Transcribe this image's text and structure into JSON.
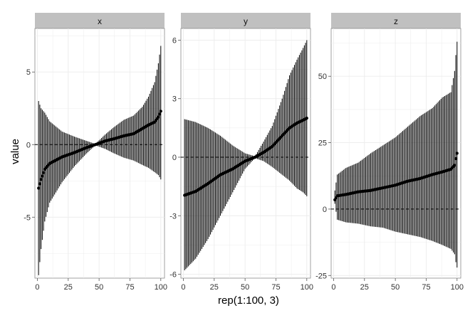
{
  "chart_data": {
    "type": "faceted-errorbar-scatter",
    "xlabel": "rep(1:100, 3)",
    "ylabel": "value",
    "xlim": [
      -2,
      103
    ],
    "x_ticks": [
      0,
      25,
      50,
      75,
      100
    ],
    "grid": true,
    "reference_line": {
      "y": 0,
      "style": "dashed"
    },
    "colors": {
      "strip": "#c0c0c0",
      "grid": "#ececec",
      "marks": "#000000"
    },
    "panels": [
      {
        "label": "x",
        "ylim": [
          -9.2,
          8.0
        ],
        "y_ticks": [
          -5,
          0,
          5
        ],
        "knots": [
          [
            1,
            -3.0,
            -9.0,
            3.0
          ],
          [
            3,
            -2.4,
            -7.2,
            2.5
          ],
          [
            6,
            -1.7,
            -5.3,
            2.2
          ],
          [
            10,
            -1.3,
            -4.0,
            1.6
          ],
          [
            20,
            -0.85,
            -2.6,
            0.9
          ],
          [
            30,
            -0.55,
            -1.5,
            0.55
          ],
          [
            40,
            -0.2,
            -0.6,
            0.25
          ],
          [
            47,
            0.0,
            -0.05,
            0.05
          ],
          [
            55,
            0.25,
            -0.3,
            0.7
          ],
          [
            62,
            0.4,
            -0.6,
            1.2
          ],
          [
            70,
            0.6,
            -0.9,
            1.7
          ],
          [
            78,
            0.75,
            -1.1,
            2.0
          ],
          [
            85,
            1.1,
            -1.4,
            2.6
          ],
          [
            90,
            1.35,
            -1.6,
            3.3
          ],
          [
            95,
            1.55,
            -1.9,
            4.3
          ],
          [
            98,
            1.9,
            -2.1,
            5.6
          ],
          [
            100,
            2.3,
            -2.4,
            6.8
          ]
        ]
      },
      {
        "label": "y",
        "ylim": [
          -6.2,
          6.6
        ],
        "y_ticks": [
          -6,
          -3,
          0,
          3,
          6
        ],
        "knots": [
          [
            1,
            -1.95,
            -5.8,
            1.95
          ],
          [
            10,
            -1.75,
            -5.2,
            1.8
          ],
          [
            20,
            -1.35,
            -4.2,
            1.5
          ],
          [
            30,
            -0.9,
            -3.0,
            1.1
          ],
          [
            40,
            -0.6,
            -1.8,
            0.6
          ],
          [
            50,
            -0.2,
            -0.6,
            0.2
          ],
          [
            58,
            0.0,
            -0.05,
            0.05
          ],
          [
            65,
            0.25,
            -0.2,
            0.8
          ],
          [
            72,
            0.55,
            -0.5,
            1.6
          ],
          [
            80,
            1.1,
            -0.9,
            3.0
          ],
          [
            86,
            1.5,
            -1.2,
            4.2
          ],
          [
            92,
            1.75,
            -1.6,
            5.0
          ],
          [
            97,
            1.9,
            -1.8,
            5.6
          ],
          [
            100,
            2.0,
            -2.0,
            6.0
          ]
        ]
      },
      {
        "label": "z",
        "ylim": [
          -26,
          68
        ],
        "y_ticks": [
          -25,
          0,
          25,
          50
        ],
        "knots": [
          [
            1,
            3.5,
            2.0,
            7.0
          ],
          [
            3,
            5.0,
            -4.0,
            13.0
          ],
          [
            10,
            5.5,
            -5.0,
            15.5
          ],
          [
            20,
            6.5,
            -5.5,
            17.5
          ],
          [
            30,
            7.0,
            -6.5,
            21.0
          ],
          [
            40,
            8.0,
            -7.0,
            24.0
          ],
          [
            50,
            9.0,
            -8.5,
            27.0
          ],
          [
            60,
            10.5,
            -9.5,
            31.0
          ],
          [
            70,
            11.5,
            -10.5,
            35.0
          ],
          [
            80,
            13.0,
            -12.0,
            38.0
          ],
          [
            88,
            14.0,
            -13.5,
            42.0
          ],
          [
            95,
            15.0,
            -15.0,
            44.0
          ],
          [
            98,
            16.5,
            -17.0,
            52.0
          ],
          [
            99,
            19.0,
            -20.0,
            58.0
          ],
          [
            100,
            21.0,
            -22.0,
            63.0
          ]
        ]
      }
    ]
  }
}
